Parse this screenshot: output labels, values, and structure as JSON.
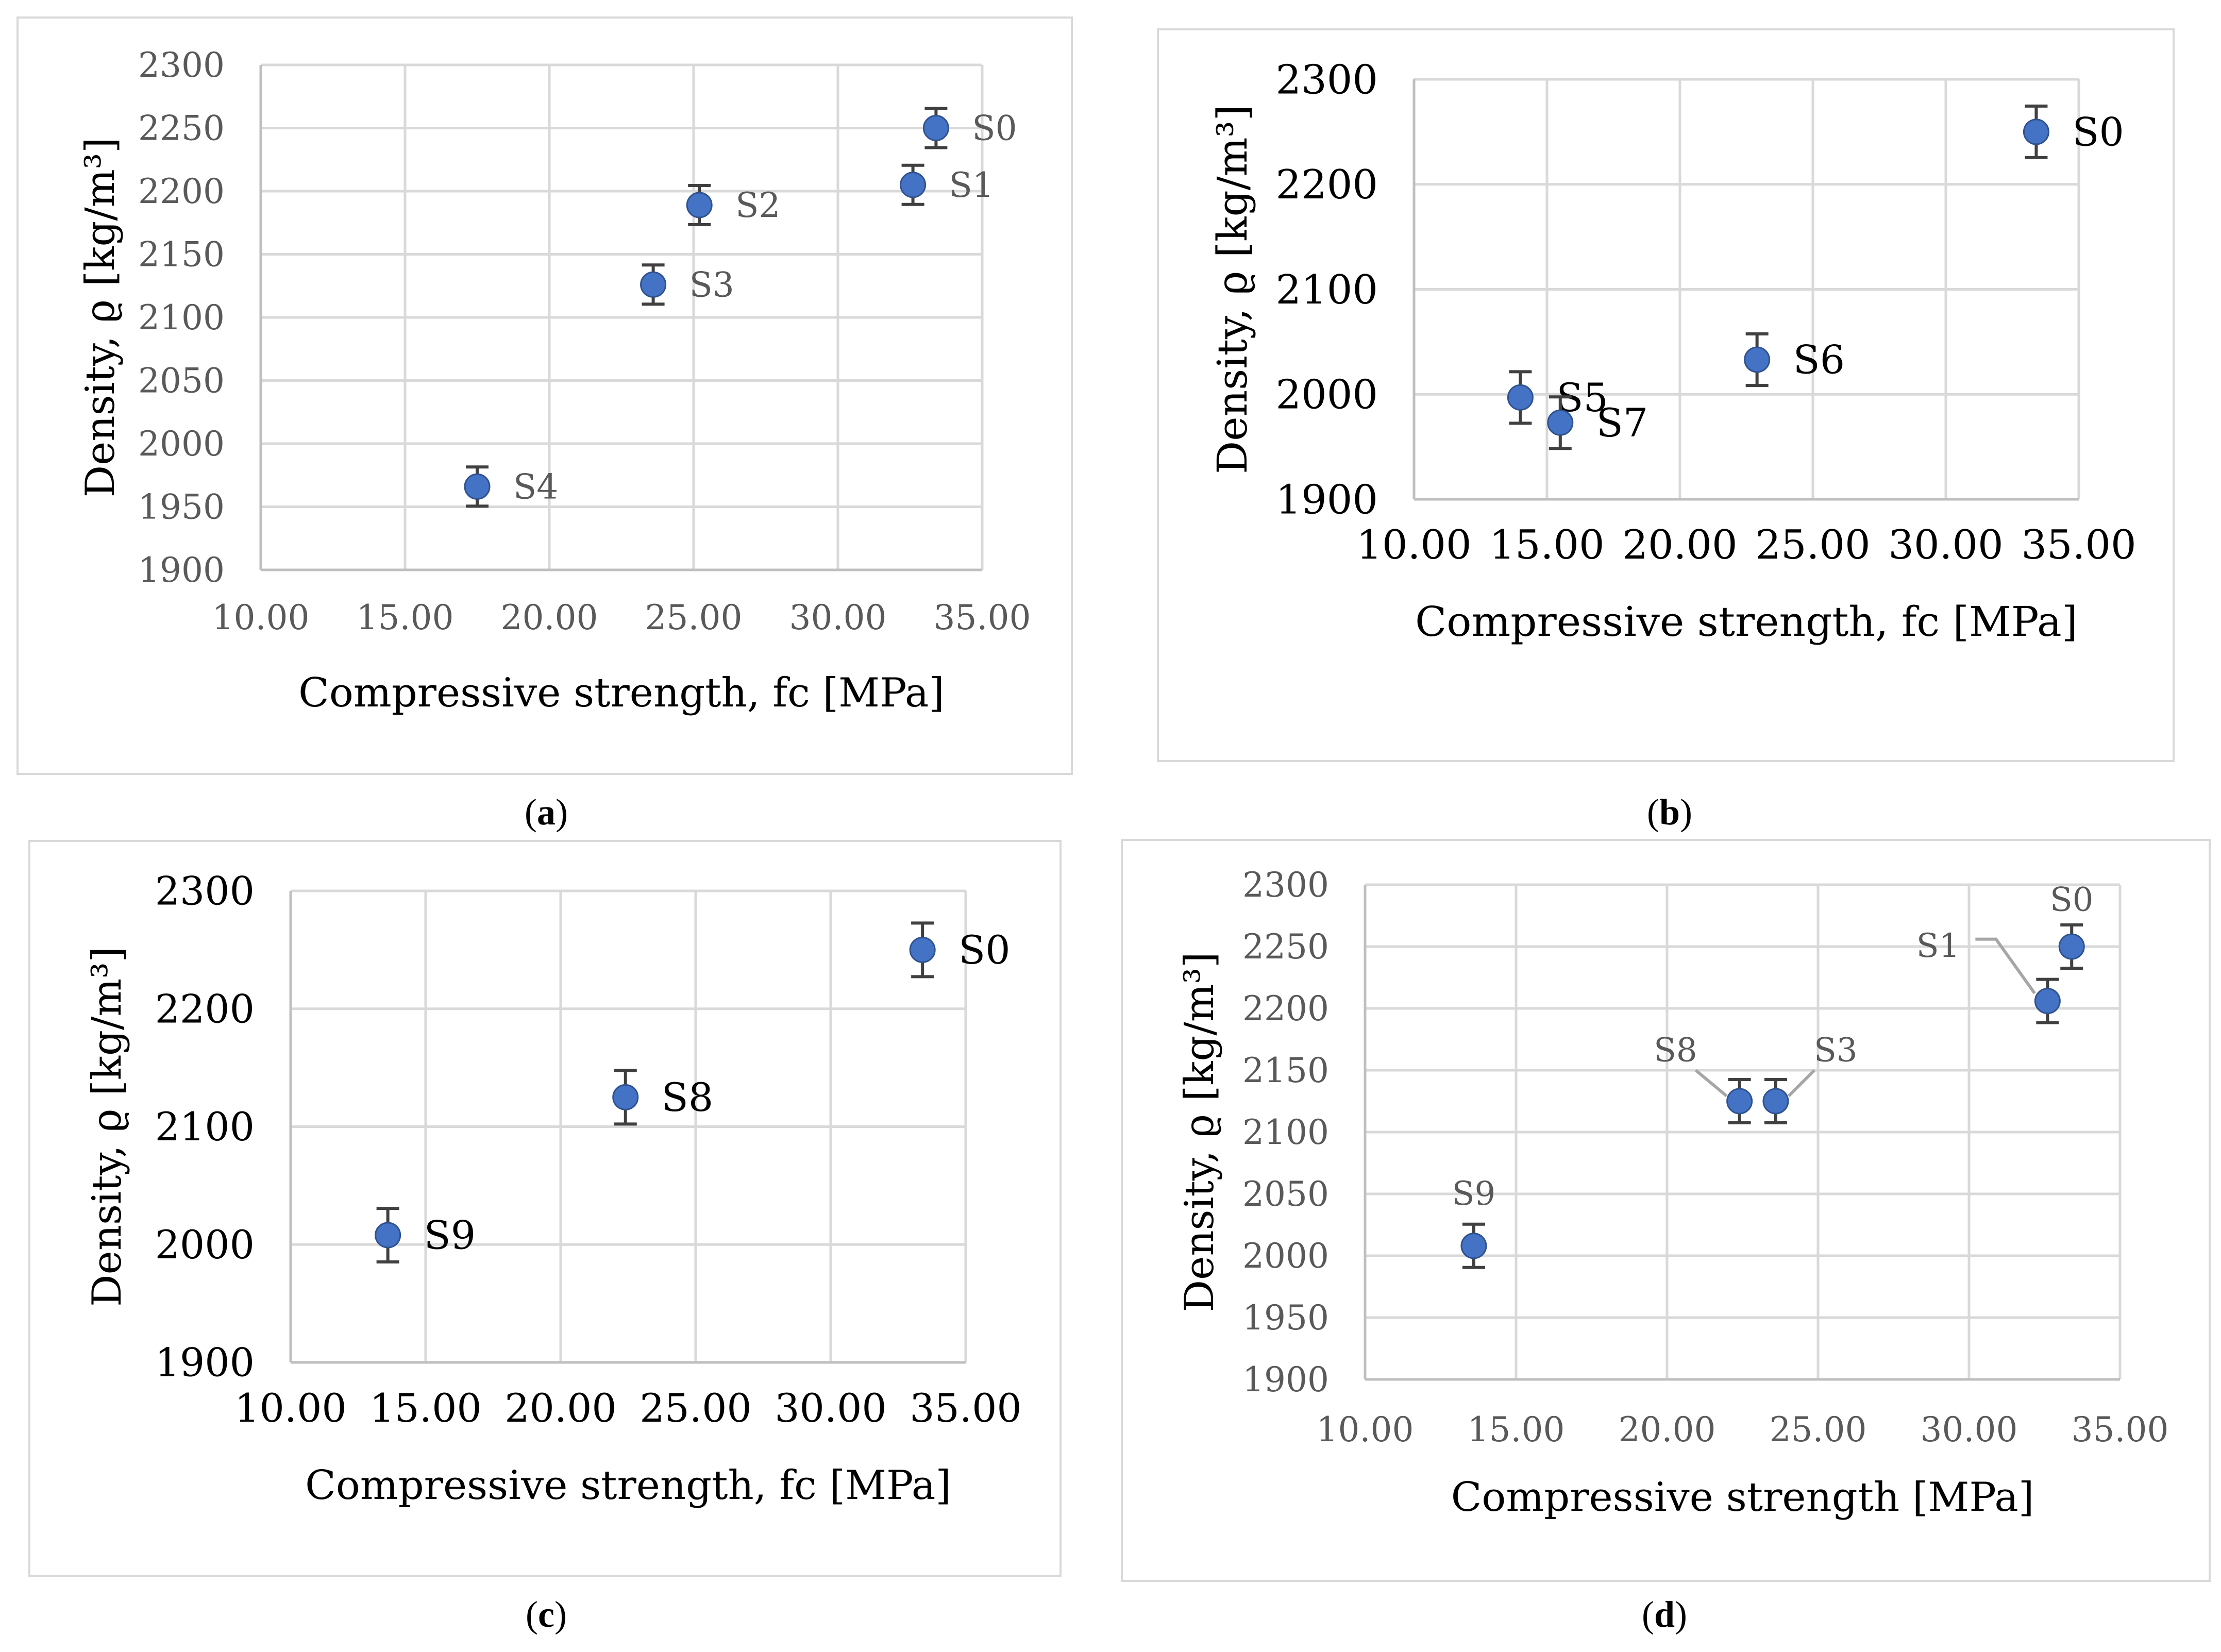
{
  "colors": {
    "marker": "#4472c4",
    "marker_edge": "#2f528f",
    "error_bar": "#404040",
    "grid": "#d9d9d9",
    "axis": "#bfbfbf",
    "tick_text": "#595959",
    "label_text": "#000000",
    "leader_line": "#a6a6a6"
  },
  "chart_data": [
    {
      "id": "a",
      "type": "scatter",
      "caption": "a",
      "xlabel": "Compressive strength, fc [MPa]",
      "ylabel": "Density, ϱ  [kg/m³]",
      "xlim": [
        10,
        35
      ],
      "ylim": [
        1900,
        2300
      ],
      "xticks": [
        "10.00",
        "15.00",
        "20.00",
        "25.00",
        "30.00",
        "35.00"
      ],
      "yticks": [
        "1900",
        "1950",
        "2000",
        "2050",
        "2100",
        "2150",
        "2200",
        "2250",
        "2300"
      ],
      "points": [
        {
          "label": "S0",
          "x": 33.4,
          "y": 2250,
          "err": 15
        },
        {
          "label": "S1",
          "x": 32.6,
          "y": 2205,
          "err": 15
        },
        {
          "label": "S2",
          "x": 25.2,
          "y": 2189,
          "err": 15
        },
        {
          "label": "S3",
          "x": 23.6,
          "y": 2126,
          "err": 15
        },
        {
          "label": "S4",
          "x": 17.5,
          "y": 1966,
          "err": 15
        }
      ]
    },
    {
      "id": "b",
      "type": "scatter",
      "caption": "b",
      "xlabel": "Compressive strength, fc [MPa]",
      "ylabel": "Density, ϱ  [kg/m³]",
      "xlim": [
        10,
        35
      ],
      "ylim": [
        1900,
        2300
      ],
      "xticks": [
        "10.00",
        "15.00",
        "20.00",
        "25.00",
        "30.00",
        "35.00"
      ],
      "yticks": [
        "1900",
        "2000",
        "2100",
        "2200",
        "2300"
      ],
      "points": [
        {
          "label": "S0",
          "x": 33.4,
          "y": 2250,
          "err": 20
        },
        {
          "label": "S5",
          "x": 14.0,
          "y": 1997,
          "err": 20
        },
        {
          "label": "S6",
          "x": 22.9,
          "y": 2033,
          "err": 20
        },
        {
          "label": "S7",
          "x": 15.5,
          "y": 1973,
          "err": 20
        }
      ]
    },
    {
      "id": "c",
      "type": "scatter",
      "caption": "c",
      "xlabel": "Compressive strength, fc [MPa]",
      "ylabel": "Density, ϱ  [kg/m³]",
      "xlim": [
        10,
        35
      ],
      "ylim": [
        1900,
        2300
      ],
      "xticks": [
        "10.00",
        "15.00",
        "20.00",
        "25.00",
        "30.00",
        "35.00"
      ],
      "yticks": [
        "1900",
        "2000",
        "2100",
        "2200",
        "2300"
      ],
      "points": [
        {
          "label": "S0",
          "x": 33.4,
          "y": 2250,
          "err": 20
        },
        {
          "label": "S8",
          "x": 22.4,
          "y": 2125,
          "err": 20
        },
        {
          "label": "S9",
          "x": 13.6,
          "y": 2008,
          "err": 20
        }
      ]
    },
    {
      "id": "d",
      "type": "scatter",
      "caption": "d",
      "xlabel": "Compressive strength [MPa]",
      "ylabel": "Density, ϱ  [kg/m³]",
      "xlim": [
        10,
        35
      ],
      "ylim": [
        1900,
        2300
      ],
      "xticks": [
        "10.00",
        "15.00",
        "20.00",
        "25.00",
        "30.00",
        "35.00"
      ],
      "yticks": [
        "1900",
        "1950",
        "2000",
        "2050",
        "2100",
        "2150",
        "2200",
        "2250",
        "2300"
      ],
      "points": [
        {
          "label": "S0",
          "x": 33.4,
          "y": 2250,
          "err": 16
        },
        {
          "label": "S1",
          "x": 32.6,
          "y": 2206,
          "err": 16
        },
        {
          "label": "S8",
          "x": 22.4,
          "y": 2125,
          "err": 16
        },
        {
          "label": "S3",
          "x": 23.6,
          "y": 2125,
          "err": 16
        },
        {
          "label": "S9",
          "x": 13.6,
          "y": 2008,
          "err": 16
        }
      ]
    }
  ]
}
